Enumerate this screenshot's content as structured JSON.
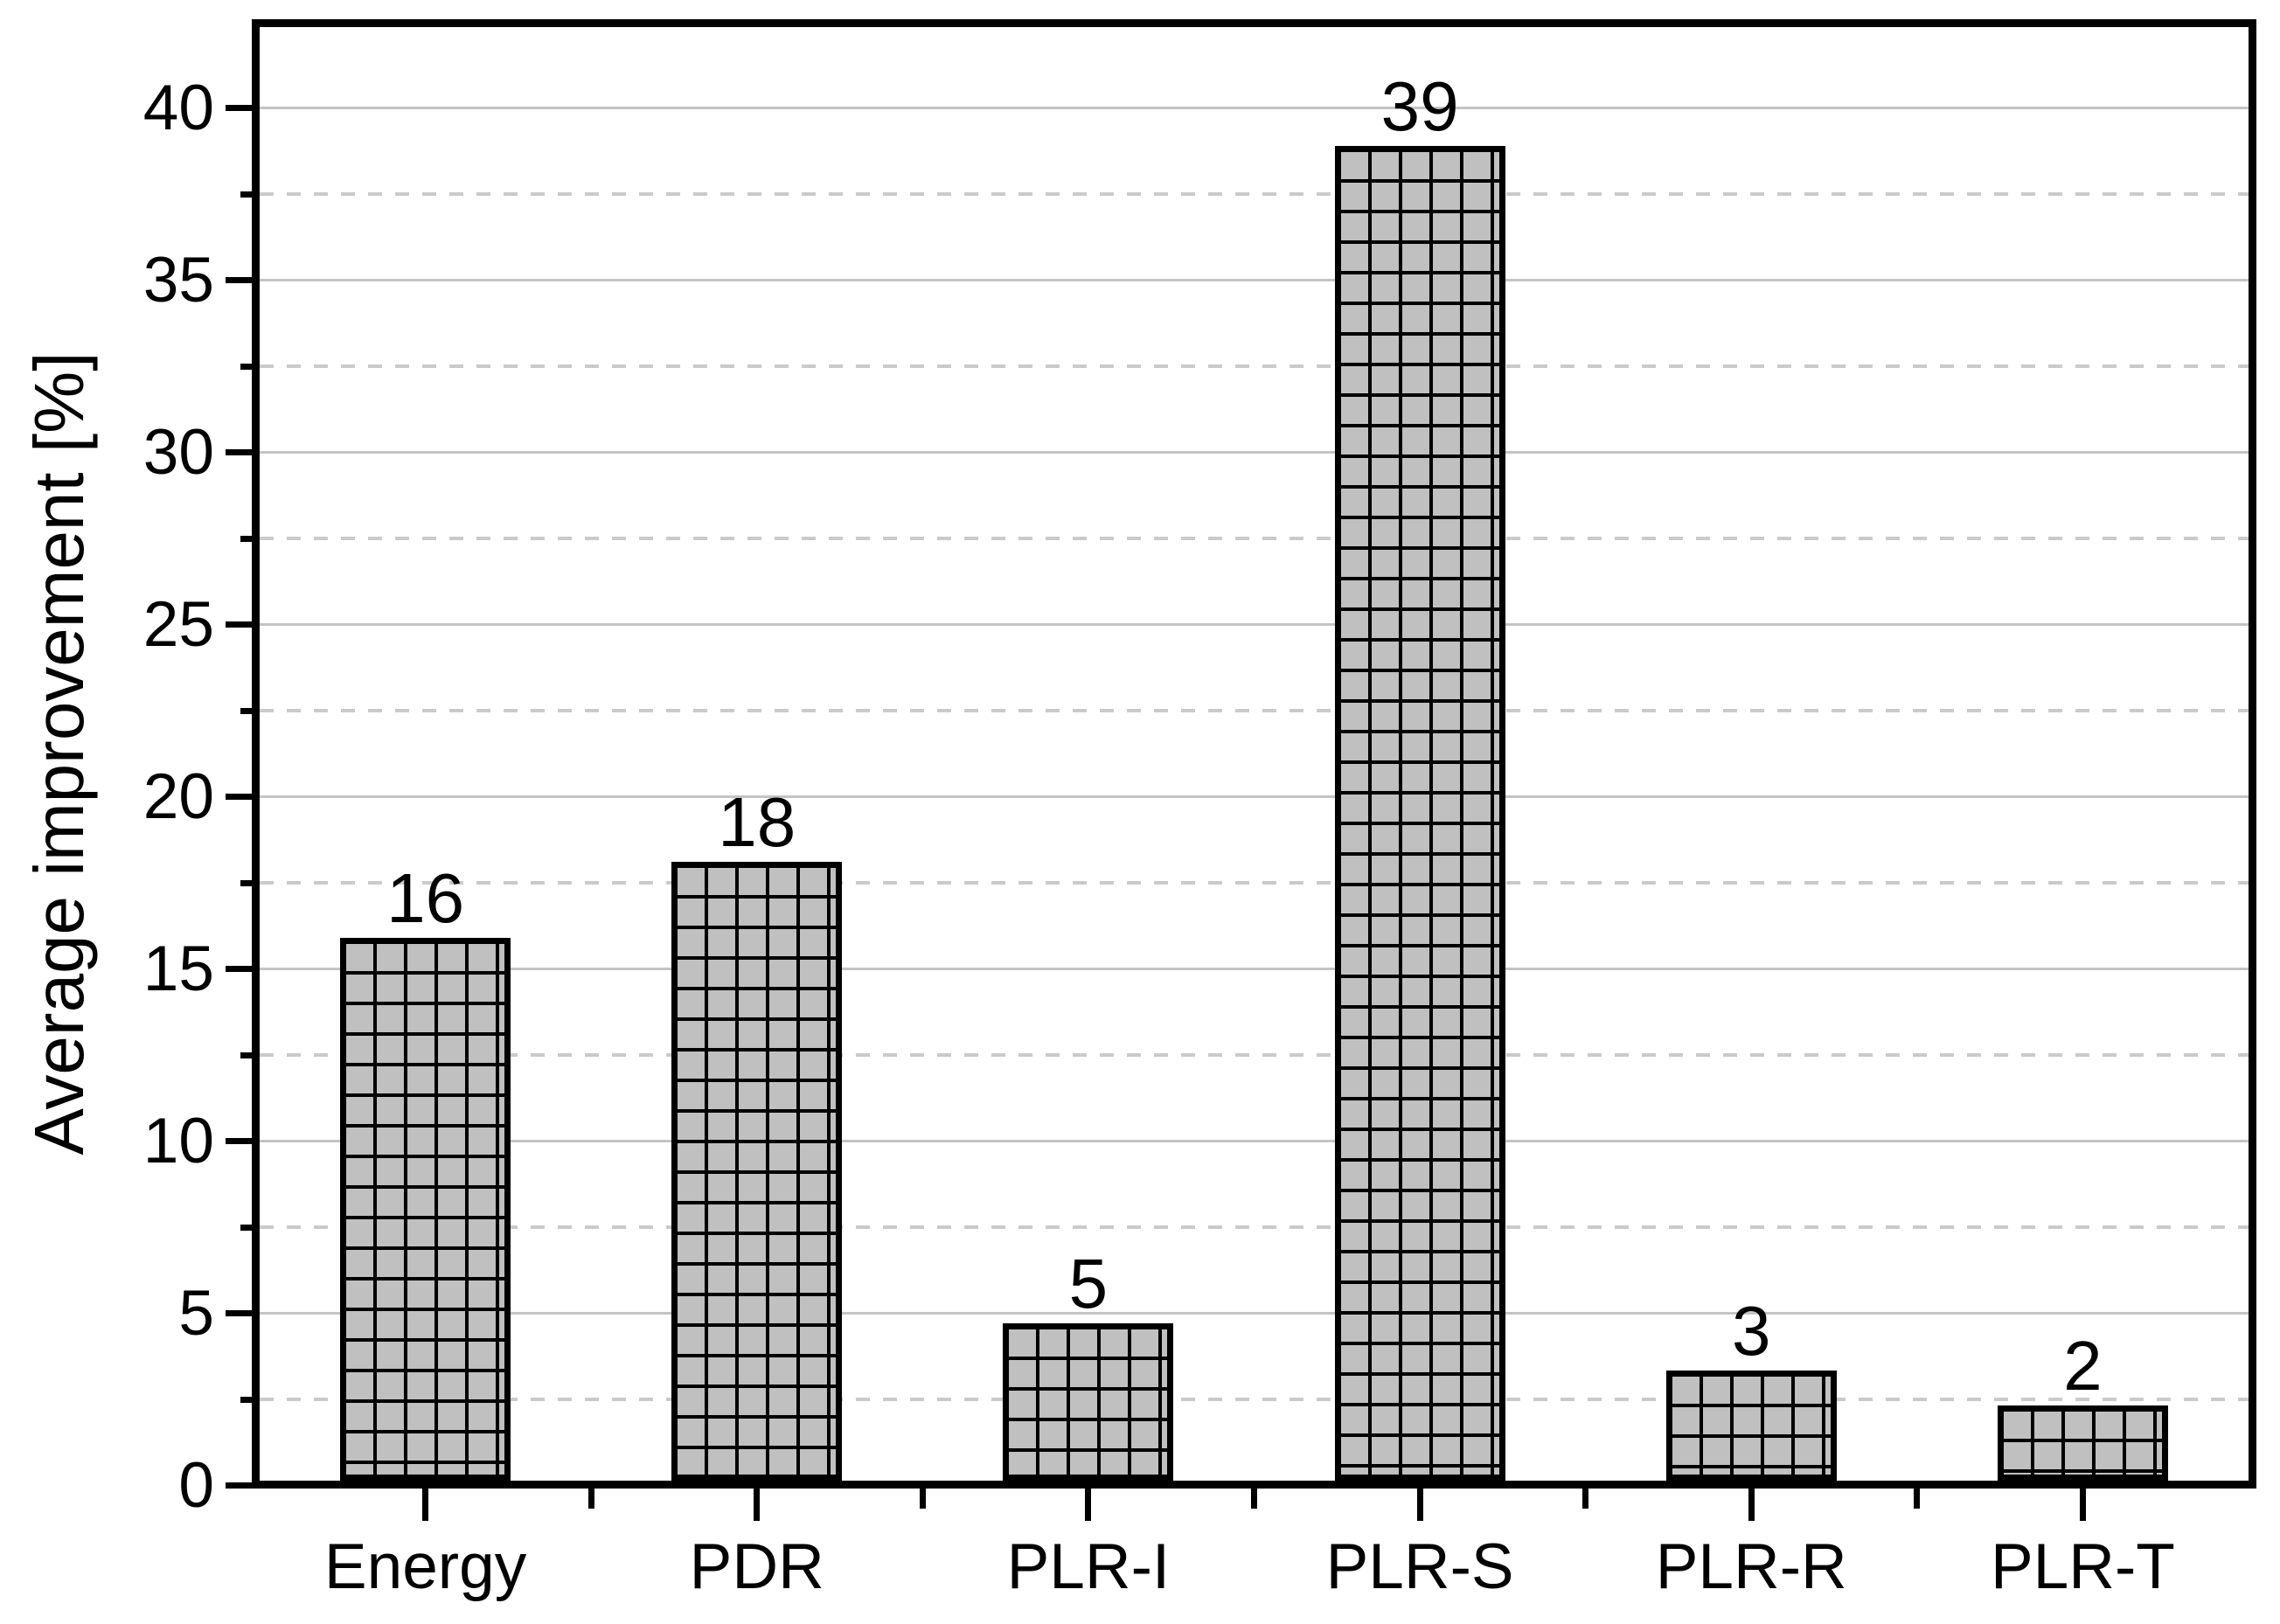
{
  "figure": {
    "background": "#ffffff"
  },
  "chart_data": {
    "type": "bar",
    "title": "",
    "categories": [
      "Energy",
      "PDR",
      "PLR-I",
      "PLR-S",
      "PLR-R",
      "PLR-T"
    ],
    "values": [
      16,
      18,
      5,
      39,
      3,
      2
    ],
    "value_labels": [
      "16",
      "18",
      "5",
      "39",
      "3",
      "2"
    ],
    "bar_heights_precise": [
      15.9,
      18.1,
      4.7,
      38.9,
      3.35,
      2.33
    ],
    "xlabel": "",
    "ylabel": "Average improvement [%]",
    "ylim": [
      0,
      42.35
    ],
    "yticks_major": [
      0,
      5,
      10,
      15,
      20,
      25,
      30,
      35,
      40
    ],
    "yticks_minor": [
      2.5,
      7.5,
      12.5,
      17.5,
      22.5,
      27.5,
      32.5,
      37.5
    ],
    "grid": {
      "horizontal_major": "solid",
      "horizontal_minor": "dashed",
      "vertical": "none"
    },
    "legend": null,
    "bar_pattern": "square-crosshatch",
    "colors": {
      "bar_fill": "#c0c0c0",
      "bar_border": "#000000",
      "pattern_line": "#000000",
      "major_grid": "#c4c4c4",
      "minor_grid": "#cacaca",
      "axis": "#000000",
      "text": "#000000"
    }
  }
}
